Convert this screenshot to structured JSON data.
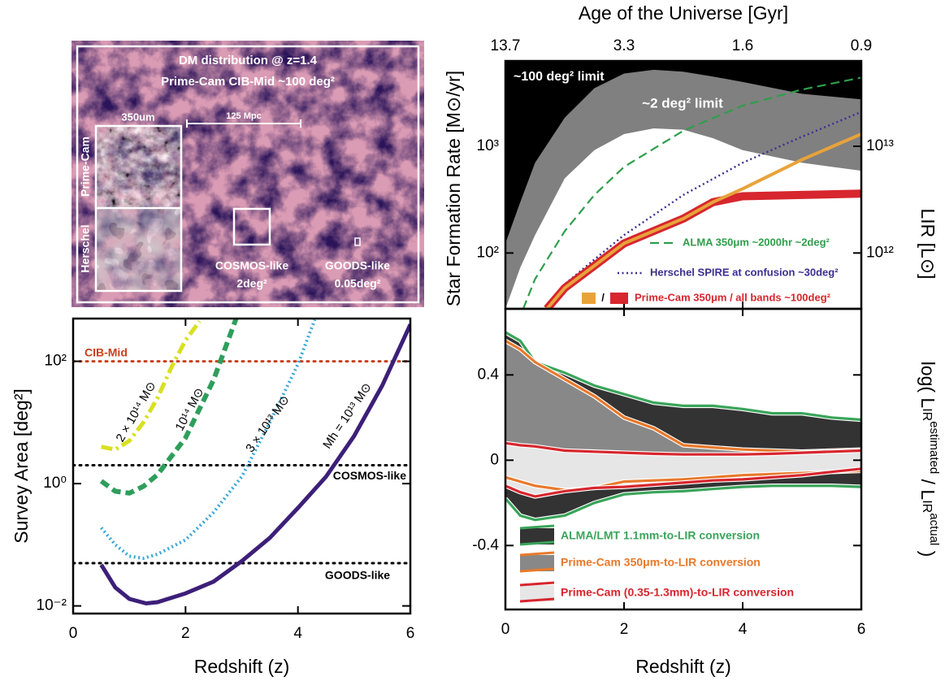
{
  "image_panel": {
    "title": "DM distribution @ z=1.4",
    "subtitle": "Prime-Cam CIB-Mid  ~100 deg²",
    "inset_band": "350um",
    "inset_top": "Prime-Cam",
    "inset_bottom": "Herschel",
    "scale_bar": "125 Mpc",
    "fields": [
      {
        "name": "COSMOS-like",
        "area": "2deg²"
      },
      {
        "name": "GOODS-like",
        "area": "0.05deg²"
      }
    ]
  },
  "chart_data": [
    {
      "type": "line",
      "ylog": true,
      "xlabel": "Redshift (z)",
      "ylabel": "Survey Area [deg²]",
      "xlim": [
        0,
        6
      ],
      "xticks": [
        0,
        2,
        4,
        6
      ],
      "ylim": [
        0.0075,
        500
      ],
      "yticks": [
        {
          "value": 0.01,
          "label": "10⁻²"
        },
        {
          "value": 1,
          "label": "10⁰"
        },
        {
          "value": 100,
          "label": "10²"
        }
      ],
      "reference_lines": [
        {
          "label": "CIB-Mid",
          "value": 100,
          "color": "#c8401c",
          "label_color": "#c8401c"
        },
        {
          "label": "COSMOS-like",
          "value": 2,
          "color": "#000000",
          "label_color": "#000000"
        },
        {
          "label": "GOODS-like",
          "value": 0.05,
          "color": "#000000",
          "label_color": "#000000"
        }
      ],
      "series": [
        {
          "name": "Mh = 10¹³ M⊙",
          "color": "#3d1f78",
          "style": "solid",
          "x": [
            0.5,
            0.75,
            1,
            1.3,
            1.5,
            2,
            2.5,
            3,
            3.5,
            4,
            4.5,
            5,
            5.5,
            6
          ],
          "values": [
            0.047,
            0.02,
            0.013,
            0.011,
            0.0115,
            0.016,
            0.025,
            0.054,
            0.13,
            0.4,
            1.3,
            6,
            40,
            400
          ]
        },
        {
          "name": "3 × 10¹³ M⊙",
          "color": "#3aa6d8",
          "style": "dotted",
          "x": [
            0.5,
            0.75,
            1,
            1.25,
            1.5,
            2,
            2.5,
            3,
            3.5,
            4,
            4.3
          ],
          "values": [
            0.19,
            0.1,
            0.065,
            0.06,
            0.07,
            0.12,
            0.34,
            1.3,
            10,
            90,
            480
          ]
        },
        {
          "name": "10¹⁴ M⊙",
          "color": "#2e9e5b",
          "style": "dashed",
          "x": [
            0.5,
            0.75,
            1,
            1.25,
            1.5,
            2,
            2.5,
            2.9
          ],
          "values": [
            1.1,
            0.75,
            0.7,
            0.9,
            1.4,
            5.6,
            50,
            500
          ]
        },
        {
          "name": "2 × 10¹⁴ M⊙",
          "color": "#d9e021",
          "style": "dashdot",
          "x": [
            0.5,
            0.75,
            1,
            1.25,
            1.5,
            1.75,
            2,
            2.25
          ],
          "values": [
            4,
            3.6,
            5,
            10,
            25,
            80,
            220,
            450
          ]
        }
      ]
    },
    {
      "type": "line",
      "ylog": true,
      "ylabel": "Star Formation Rate [M⊙/yr]",
      "y2label": "LIR  [L⊙]",
      "x2label": "Age of the Universe [Gyr]",
      "xlim": [
        0,
        6
      ],
      "xticks": [
        0,
        2,
        4,
        6
      ],
      "x2ticks": [
        {
          "value": 0,
          "label": "13.7"
        },
        {
          "value": 2,
          "label": "3.3"
        },
        {
          "value": 4,
          "label": "1.6"
        },
        {
          "value": 6,
          "label": "0.9"
        }
      ],
      "ylim": [
        30,
        6300
      ],
      "yticks": [
        {
          "value": 100,
          "label": "10²"
        },
        {
          "value": 1000,
          "label": "10³"
        }
      ],
      "y2lim": [
        300000000000,
        63000000000000
      ],
      "y2ticks": [
        {
          "value": 1000000000000,
          "label": "10¹²"
        },
        {
          "value": 10000000000000,
          "label": "10¹³"
        }
      ],
      "areas": [
        {
          "name": "~2 deg² limit",
          "color": "#808080",
          "x": [
            0,
            0.25,
            0.5,
            1,
            1.5,
            2,
            2.5,
            3,
            3.5,
            4,
            5,
            6
          ],
          "values": [
            30,
            73,
            147,
            500,
            920,
            1300,
            1470,
            1430,
            1190,
            920,
            700,
            590
          ]
        },
        {
          "name": "~100 deg² limit",
          "color": "#000000",
          "x": [
            0,
            0.25,
            0.5,
            1,
            1.5,
            2,
            2.5,
            3,
            3.5,
            4,
            5,
            6
          ],
          "values": [
            123,
            300,
            700,
            1850,
            3500,
            4800,
            5200,
            5000,
            4500,
            4000,
            3100,
            2750
          ]
        }
      ],
      "series": [
        {
          "name": "ALMA 350μm  ~2000hr  ~2deg²",
          "color": "#2e9e4b",
          "style": "dashed",
          "x": [
            0.3,
            0.5,
            1,
            1.5,
            2,
            3,
            4,
            5,
            6
          ],
          "values": [
            30,
            57,
            160,
            350,
            640,
            1400,
            2400,
            3400,
            4400
          ]
        },
        {
          "name": "Herschel SPIRE at confusion ~30deg²",
          "color": "#3b2f8f",
          "style": "dotted",
          "x": [
            0.7,
            1,
            1.5,
            2,
            3,
            4,
            5,
            6
          ],
          "values": [
            30,
            51,
            87,
            147,
            350,
            700,
            1230,
            2100
          ]
        },
        {
          "name": "Prime-Cam 350μm / all bands ~100deg²",
          "color": "#d7262e",
          "style": "solid",
          "x": [
            0.7,
            1,
            1.5,
            2,
            3,
            3.5,
            4,
            5,
            6
          ],
          "values": [
            30,
            47,
            76,
            123,
            210,
            300,
            340,
            350,
            360
          ]
        },
        {
          "color": "#e8a33a",
          "style": "solid",
          "x": [
            0.7,
            1,
            1.5,
            2,
            3,
            3.5,
            4,
            5,
            6
          ],
          "values": [
            30,
            47,
            76,
            123,
            210,
            300,
            400,
            750,
            1300
          ]
        }
      ],
      "legend_separator": "/"
    },
    {
      "type": "band",
      "xlabel": "Redshift (z)",
      "y2label": [
        "log( L",
        "IR",
        "estimated",
        " / L",
        "IR",
        "actual",
        " )"
      ],
      "xlim": [
        0,
        6
      ],
      "xticks": [
        0,
        2,
        4,
        6
      ],
      "ylim": [
        -0.7,
        0.71
      ],
      "yticks": [
        -0.4,
        0,
        0.4
      ],
      "x": [
        0,
        0.25,
        0.5,
        1,
        1.5,
        2,
        2.5,
        3,
        3.5,
        4,
        4.5,
        5,
        5.5,
        6
      ],
      "series": [
        {
          "name": "ALMA/LMT 1.1mm-to-LIR conversion",
          "color": "#3aa55a",
          "fill": "#333333",
          "upper": [
            0.6,
            0.56,
            0.46,
            0.41,
            0.35,
            0.31,
            0.27,
            0.255,
            0.255,
            0.24,
            0.22,
            0.22,
            0.2,
            0.19
          ],
          "lower": [
            -0.18,
            -0.26,
            -0.28,
            -0.26,
            -0.2,
            -0.16,
            -0.15,
            -0.145,
            -0.135,
            -0.125,
            -0.12,
            -0.12,
            -0.12,
            -0.125
          ]
        },
        {
          "name": "Prime-Cam 350μm-to-LIR conversion",
          "color": "#e8792b",
          "fill": "#888888",
          "upper": [
            0.56,
            0.52,
            0.46,
            0.38,
            0.3,
            0.2,
            0.15,
            0.07,
            0.06,
            0.05,
            0.045,
            0.04,
            0.045,
            0.05
          ],
          "lower": [
            -0.08,
            -0.1,
            -0.12,
            -0.14,
            -0.13,
            -0.1,
            -0.095,
            -0.09,
            -0.08,
            -0.07,
            -0.065,
            -0.06,
            -0.055,
            -0.05
          ]
        },
        {
          "name": "Prime-Cam (0.35-1.3mm)-to-LIR conversion",
          "color": "#d7262e",
          "fill": "#e6e6e6",
          "upper": [
            0.08,
            0.07,
            0.065,
            0.045,
            0.04,
            0.035,
            0.03,
            0.027,
            0.027,
            0.027,
            0.03,
            0.035,
            0.04,
            0.045
          ],
          "lower": [
            -0.12,
            -0.15,
            -0.17,
            -0.145,
            -0.13,
            -0.125,
            -0.115,
            -0.105,
            -0.095,
            -0.09,
            -0.08,
            -0.07,
            -0.055,
            -0.04
          ]
        }
      ]
    }
  ]
}
